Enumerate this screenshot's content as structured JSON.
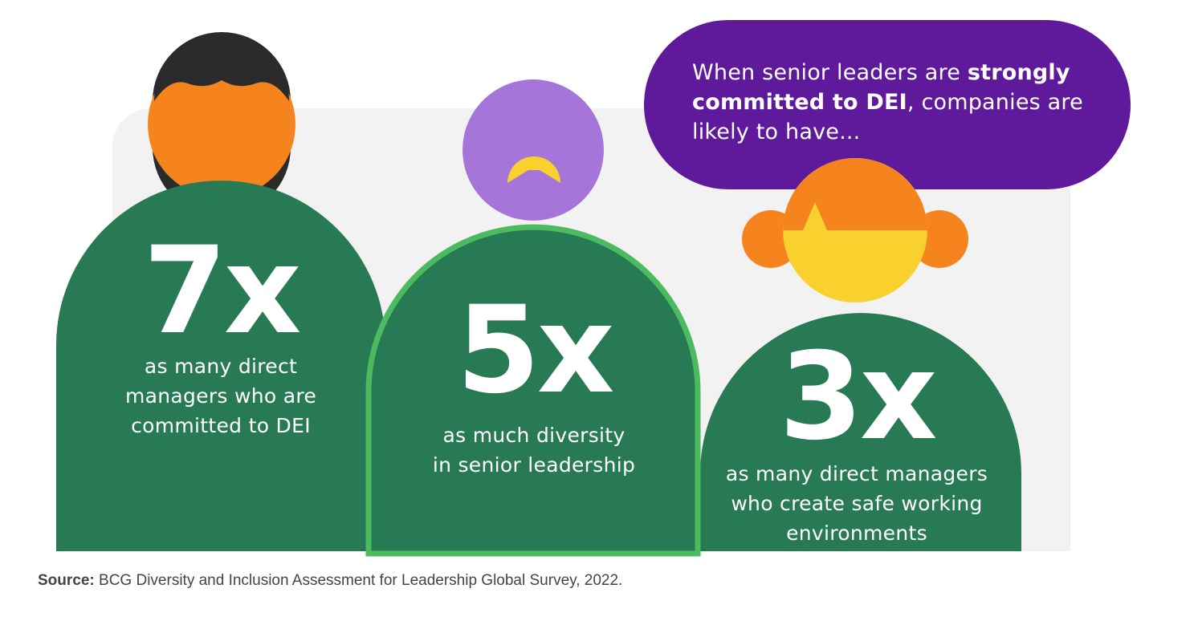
{
  "speech_bubble": {
    "text_before": "When senior leaders are ",
    "text_bold": "strongly committed to DEI",
    "text_after": ", companies are likely to have..."
  },
  "stats": [
    {
      "value": "7x",
      "description_lines": [
        "as many direct",
        "managers who are",
        "committed to DEI"
      ]
    },
    {
      "value": "5x",
      "description_lines": [
        "as much diversity",
        "in senior leadership"
      ]
    },
    {
      "value": "3x",
      "description_lines": [
        "as many direct managers",
        "who create safe working",
        "environments"
      ]
    }
  ],
  "source": {
    "label": "Source:",
    "text": " BCG Diversity and Inclusion Assessment for Leadership Global Survey, 2022."
  },
  "colors": {
    "body_green": "#287a55",
    "outline_green": "#4cba5f",
    "bubble_purple": "#5f1a9b",
    "orange": "#f5841f",
    "yellow": "#f8d12f",
    "lavender": "#a575d9",
    "hair_dark": "#2b2b2b",
    "panel_gray": "#f2f2f2"
  }
}
